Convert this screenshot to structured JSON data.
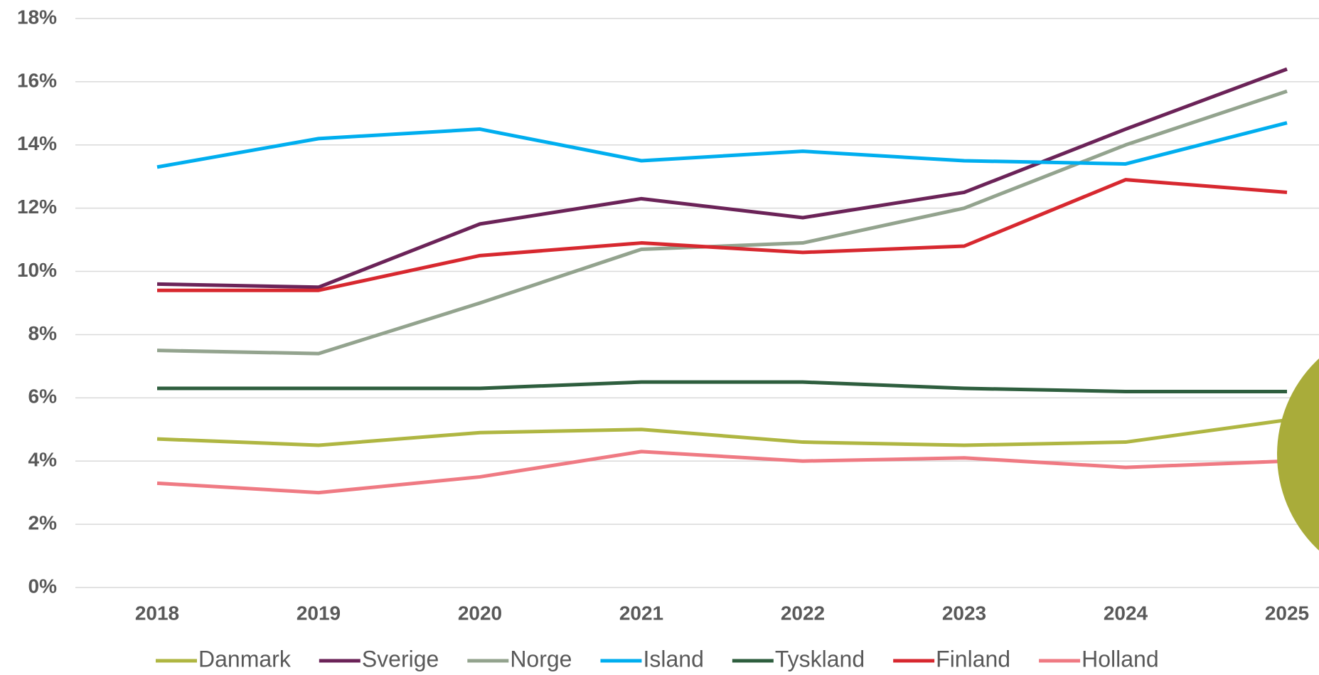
{
  "chart_data": {
    "type": "line",
    "categories": [
      "2018",
      "2019",
      "2020",
      "2021",
      "2022",
      "2023",
      "2024",
      "2025"
    ],
    "series": [
      {
        "name": "Danmark",
        "color": "#afb642",
        "values": [
          4.7,
          4.5,
          4.9,
          5.0,
          4.6,
          4.5,
          4.6,
          5.3
        ]
      },
      {
        "name": "Sverige",
        "color": "#6b2358",
        "values": [
          9.6,
          9.5,
          11.5,
          12.3,
          11.7,
          12.5,
          14.5,
          16.4
        ]
      },
      {
        "name": "Norge",
        "color": "#93a38e",
        "values": [
          7.5,
          7.4,
          9.0,
          10.7,
          10.9,
          12.0,
          14.0,
          15.7
        ]
      },
      {
        "name": "Island",
        "color": "#00aeef",
        "values": [
          13.3,
          14.2,
          14.5,
          13.5,
          13.8,
          13.5,
          13.4,
          14.7
        ]
      },
      {
        "name": "Tyskland",
        "color": "#2e5e3e",
        "values": [
          6.3,
          6.3,
          6.3,
          6.5,
          6.5,
          6.3,
          6.2,
          6.2
        ]
      },
      {
        "name": "Finland",
        "color": "#d7282f",
        "values": [
          9.4,
          9.4,
          10.5,
          10.9,
          10.6,
          10.8,
          12.9,
          12.5
        ]
      },
      {
        "name": "Holland",
        "color": "#ef7a83",
        "values": [
          3.3,
          3.0,
          3.5,
          4.3,
          4.0,
          4.1,
          3.8,
          4.0
        ]
      }
    ],
    "ylim": [
      0,
      18
    ],
    "yticks": [
      {
        "value": 0,
        "label": "0%"
      },
      {
        "value": 2,
        "label": "2%"
      },
      {
        "value": 4,
        "label": "4%"
      },
      {
        "value": 6,
        "label": "6%"
      },
      {
        "value": 8,
        "label": "8%"
      },
      {
        "value": 10,
        "label": "10%"
      },
      {
        "value": 12,
        "label": "12%"
      },
      {
        "value": 14,
        "label": "14%"
      },
      {
        "value": 16,
        "label": "16%"
      },
      {
        "value": 18,
        "label": "18%"
      }
    ],
    "grid": true,
    "legend": "bottom"
  }
}
